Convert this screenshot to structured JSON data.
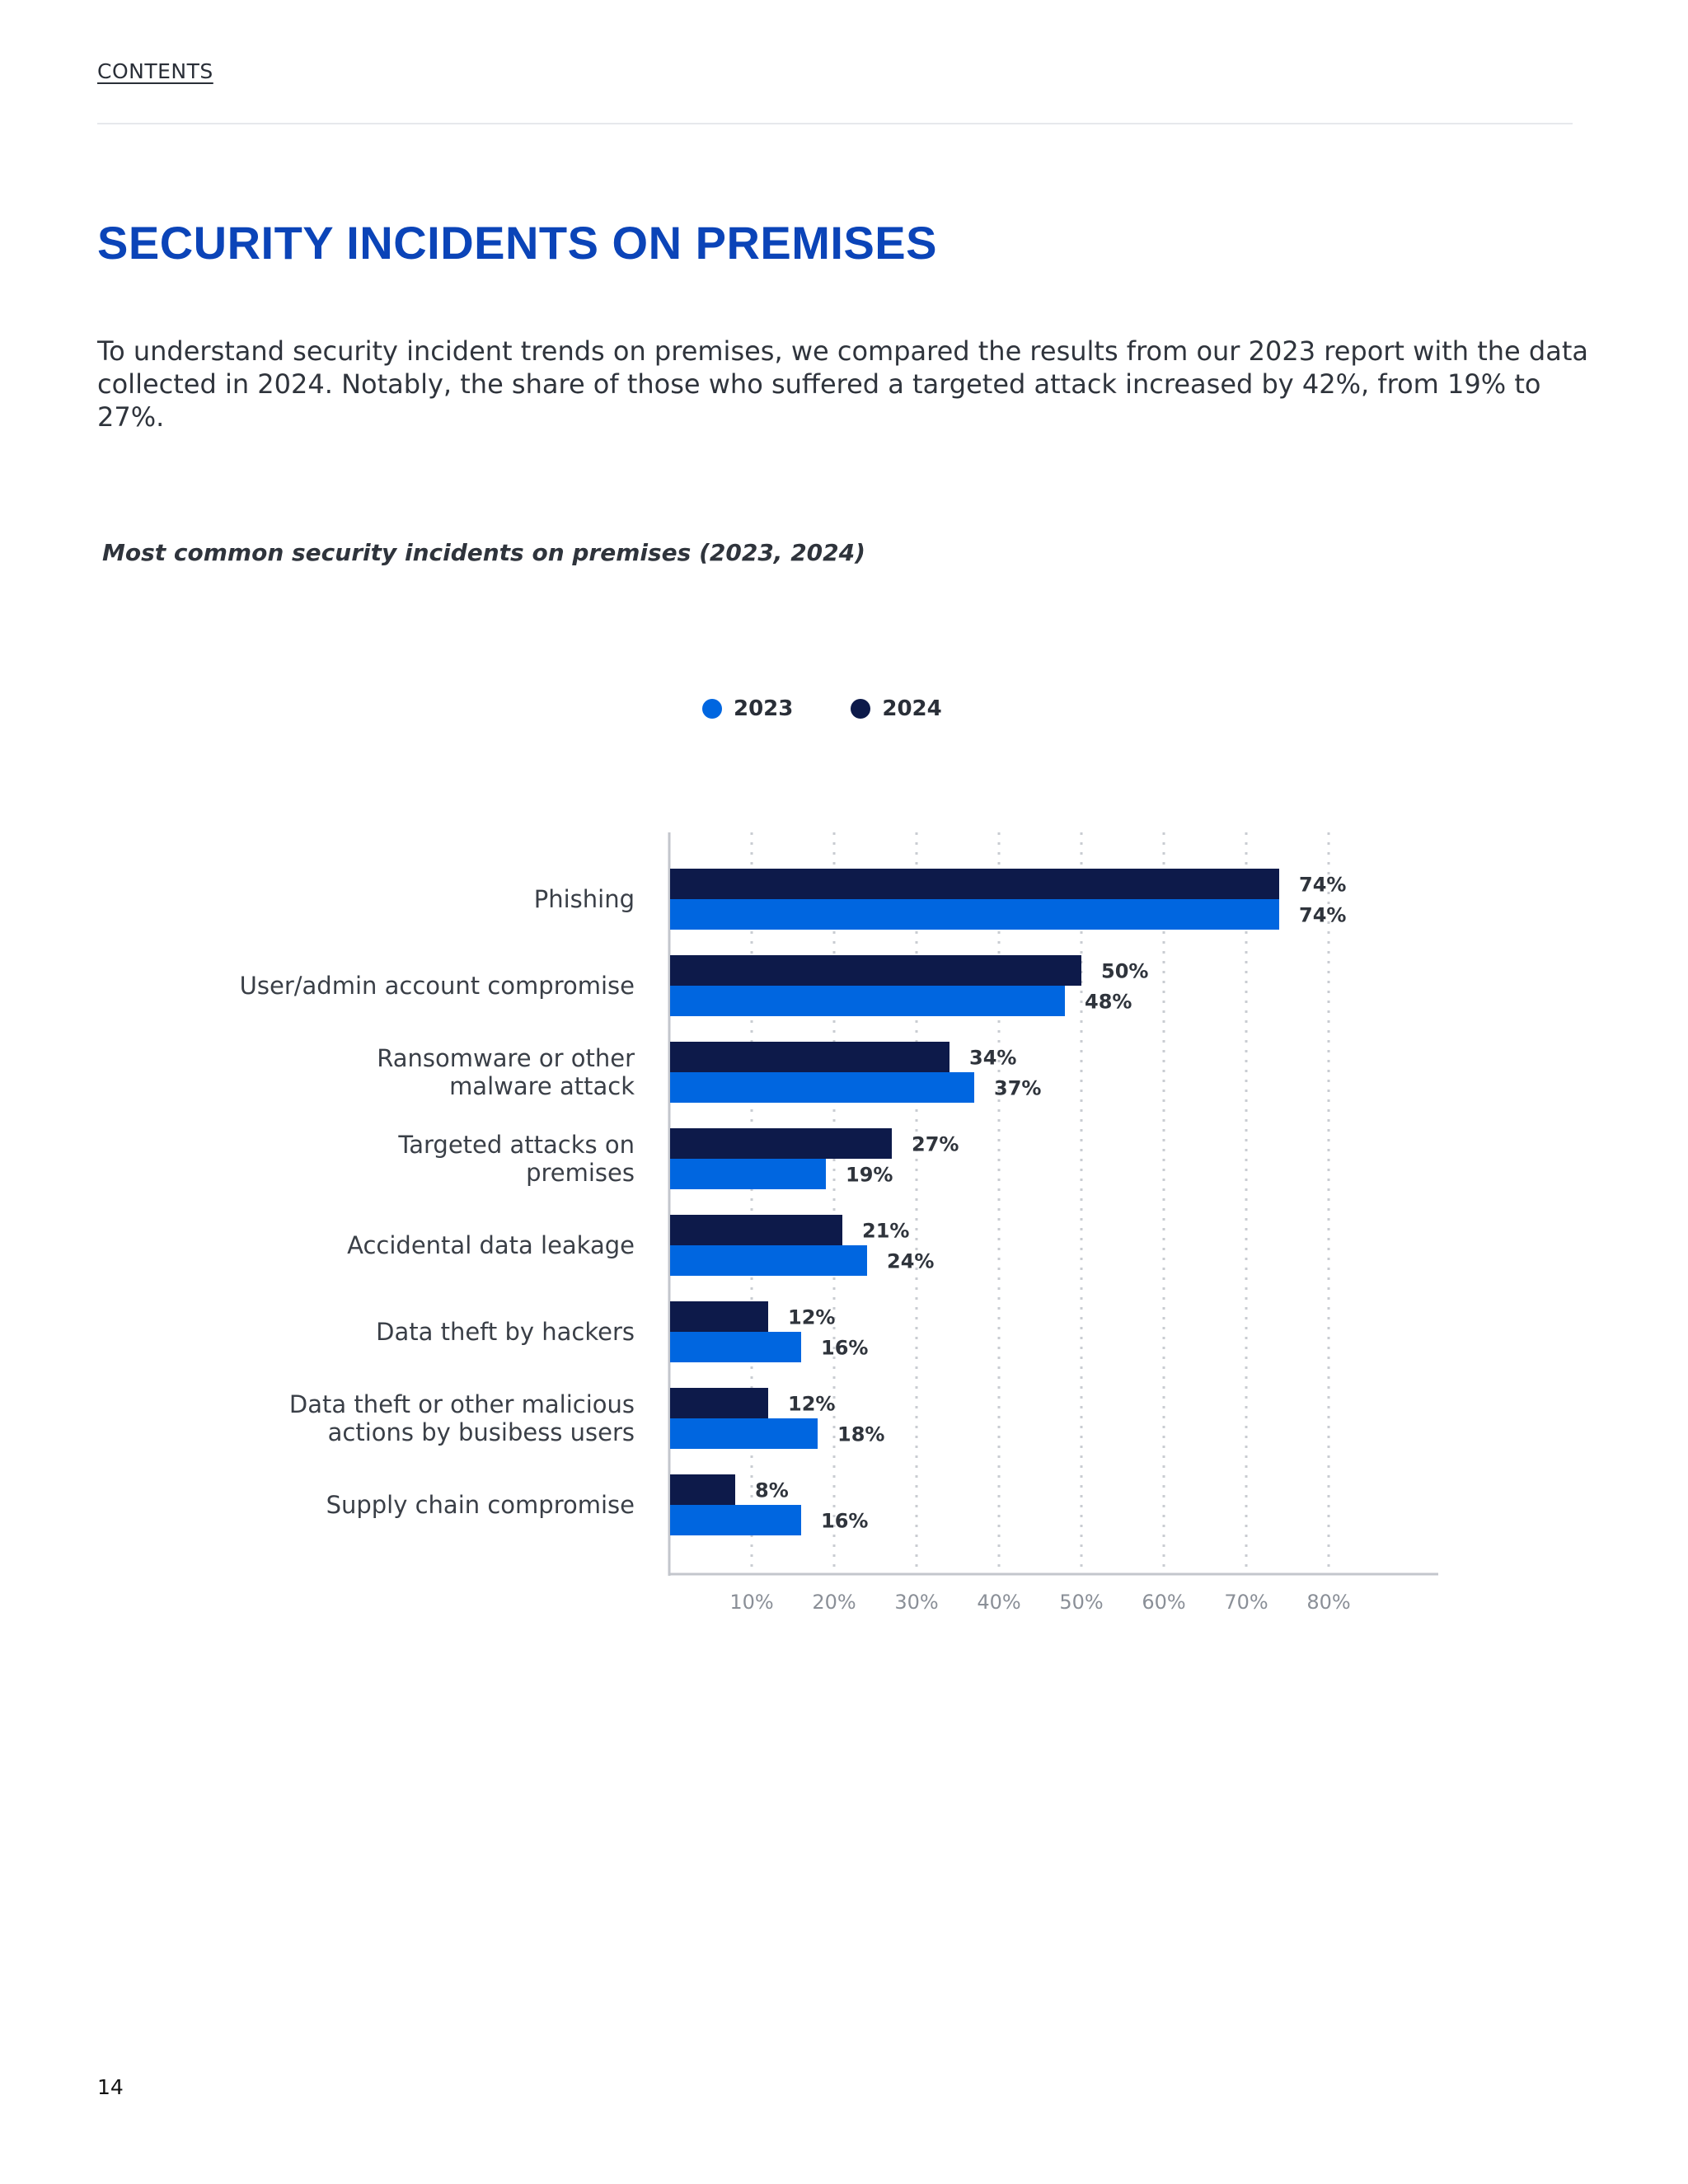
{
  "header": {
    "contents_label": "CONTENTS"
  },
  "page": {
    "title": "SECURITY INCIDENTS ON PREMISES",
    "intro": "To understand security incident trends on premises, we compared the results from our 2023 report with the data collected in 2024. Notably, the share of those who suffered a targeted attack increased by 42%, from 19% to 27%.",
    "page_number": "14"
  },
  "chart_data": {
    "type": "bar",
    "orientation": "horizontal",
    "title": "Most common security incidents on premises (2023, 2024)",
    "categories": [
      [
        "Phishing"
      ],
      [
        "User/admin account compromise"
      ],
      [
        "Ransomware or other",
        "malware attack"
      ],
      [
        "Targeted attacks on",
        "premises"
      ],
      [
        "Accidental data leakage"
      ],
      [
        "Data theft by hackers"
      ],
      [
        "Data theft or other malicious",
        "actions by busibess users"
      ],
      [
        "Supply chain compromise"
      ]
    ],
    "series": [
      {
        "name": "2024",
        "color": "#0d1a4a",
        "values": [
          74,
          50,
          34,
          27,
          21,
          12,
          12,
          8
        ],
        "labels": [
          "74%",
          "50%",
          "34%",
          "27%",
          "21%",
          "12%",
          "12%",
          "8%"
        ]
      },
      {
        "name": "2023",
        "color": "#0066e0",
        "values": [
          74,
          48,
          37,
          19,
          24,
          16,
          18,
          16
        ],
        "labels": [
          "74%",
          "48%",
          "37%",
          "19%",
          "24%",
          "16%",
          "18%",
          "16%"
        ]
      }
    ],
    "legend": [
      {
        "name": "2023",
        "color": "#0066e0"
      },
      {
        "name": "2024",
        "color": "#0d1a4a"
      }
    ],
    "xticks": [
      10,
      20,
      30,
      40,
      50,
      60,
      70,
      80
    ],
    "xtick_labels": [
      "10%",
      "20%",
      "30%",
      "40%",
      "50%",
      "60%",
      "70%",
      "80%"
    ],
    "xlim": [
      0,
      80
    ],
    "grid": "vertical dotted",
    "legend_position": "top-center"
  }
}
